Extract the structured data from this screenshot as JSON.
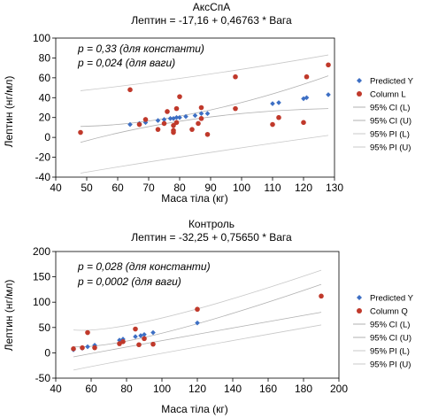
{
  "chart_data": [
    {
      "type": "scatter",
      "title": "АксСпА",
      "subtitle": "Лептин = -17,16 + 0,46763 * Вага",
      "annotations": [
        "p = 0,33 (для константи)",
        "p = 0,024 (для ваги)"
      ],
      "xlabel": "Маса тіла (кг)",
      "ylabel": "Лептин (нг/мл)",
      "xlim": [
        40,
        130
      ],
      "ylim": [
        -40,
        100
      ],
      "xticks": [
        40,
        50,
        60,
        70,
        80,
        90,
        100,
        110,
        120,
        130
      ],
      "yticks": [
        -40,
        -20,
        0,
        20,
        40,
        60,
        80,
        100
      ],
      "xtick_labels": [
        "40",
        "50",
        "60",
        "70",
        "80",
        "90",
        "100",
        "110",
        "120",
        "130"
      ],
      "ytick_labels": [
        "-40",
        "-20",
        "0",
        "20",
        "40",
        "60",
        "80",
        "100"
      ],
      "grid": false,
      "legend_position": "right",
      "legend": [
        "Predicted Y",
        "Column L",
        "95% CI (L)",
        "95% CI (U)",
        "95% PI (L)",
        "95% PI (U)"
      ],
      "line": {
        "intercept": -17.16,
        "slope": 0.46763
      },
      "ci_curves": {
        "L": [
          [
            48,
            -5
          ],
          [
            84,
            19
          ],
          [
            128,
            29
          ]
        ],
        "U": [
          [
            48,
            11
          ],
          [
            84,
            25
          ],
          [
            128,
            62
          ]
        ]
      },
      "pi_curves": {
        "L": [
          [
            48,
            -36
          ],
          [
            84,
            -17
          ],
          [
            128,
            2
          ]
        ],
        "U": [
          [
            48,
            47
          ],
          [
            84,
            62
          ],
          [
            128,
            83
          ]
        ]
      },
      "series": [
        {
          "name": "Predicted Y",
          "marker": "diamond",
          "color": "#3d6fc4",
          "x": [
            64,
            67,
            69,
            73,
            75,
            77,
            78,
            79,
            80,
            82,
            85,
            87,
            89,
            98,
            110,
            112,
            120,
            121,
            128
          ],
          "y": [
            13,
            14,
            15,
            17,
            18,
            19,
            19,
            20,
            20,
            21,
            22,
            24,
            24,
            29,
            34,
            35,
            39,
            40,
            43
          ]
        },
        {
          "name": "Column L",
          "marker": "circle",
          "color": "#c0392b",
          "x": [
            48,
            64,
            67,
            69,
            73,
            75,
            76,
            78,
            78,
            78,
            79,
            79,
            80,
            84,
            86,
            87,
            87,
            89,
            98,
            98,
            110,
            112,
            120,
            121,
            128
          ],
          "y": [
            5,
            48,
            13,
            18,
            8,
            14,
            26,
            5,
            7,
            12,
            15,
            29,
            41,
            8,
            14,
            19,
            30,
            3,
            61,
            29,
            13,
            20,
            15,
            61,
            73
          ]
        }
      ]
    },
    {
      "type": "scatter",
      "title": "Контроль",
      "subtitle": "Лептин = -32,25 + 0,75650 * Вага",
      "annotations": [
        "p = 0,028 (для константи)",
        "p = 0,0002 (для ваги)"
      ],
      "xlabel": "Маса тіла (кг)",
      "ylabel": "Лептин (нг/мл)",
      "xlim": [
        40,
        200
      ],
      "ylim": [
        -50,
        200
      ],
      "xticks": [
        40,
        60,
        80,
        100,
        120,
        140,
        160,
        180,
        200
      ],
      "yticks": [
        -50,
        0,
        50,
        100,
        150,
        200
      ],
      "xtick_labels": [
        "40",
        "60",
        "80",
        "100",
        "120",
        "140",
        "160",
        "180",
        "200"
      ],
      "ytick_labels": [
        "-50",
        "0",
        "50",
        "100",
        "150",
        "200"
      ],
      "grid": false,
      "legend_position": "right",
      "legend": [
        "Predicted Y",
        "Column Q",
        "95% CI (L)",
        "95% CI (U)",
        "95% PI (L)",
        "95% PI (U)"
      ],
      "line": {
        "intercept": -32.25,
        "slope": 0.7565
      },
      "ci_curves": {
        "L": [
          [
            50,
            -8
          ],
          [
            83,
            25
          ],
          [
            190,
            80
          ]
        ],
        "U": [
          [
            50,
            12
          ],
          [
            83,
            40
          ],
          [
            190,
            135
          ]
        ]
      },
      "pi_curves": {
        "L": [
          [
            50,
            -34
          ],
          [
            83,
            0
          ],
          [
            190,
            55
          ]
        ],
        "U": [
          [
            50,
            45
          ],
          [
            83,
            70
          ],
          [
            190,
            163
          ]
        ]
      },
      "series": [
        {
          "name": "Predicted Y",
          "marker": "diamond",
          "color": "#3d6fc4",
          "x": [
            50,
            55,
            58,
            62,
            76,
            78,
            85,
            88,
            90,
            95,
            120
          ],
          "y": [
            6,
            9,
            12,
            15,
            25,
            27,
            32,
            34,
            36,
            40,
            59
          ]
        },
        {
          "name": "Column Q",
          "marker": "circle",
          "color": "#c0392b",
          "x": [
            50,
            55,
            58,
            62,
            76,
            78,
            85,
            87,
            90,
            95,
            120,
            190
          ],
          "y": [
            8,
            10,
            40,
            10,
            18,
            22,
            47,
            16,
            28,
            17,
            86,
            112
          ]
        }
      ]
    }
  ]
}
